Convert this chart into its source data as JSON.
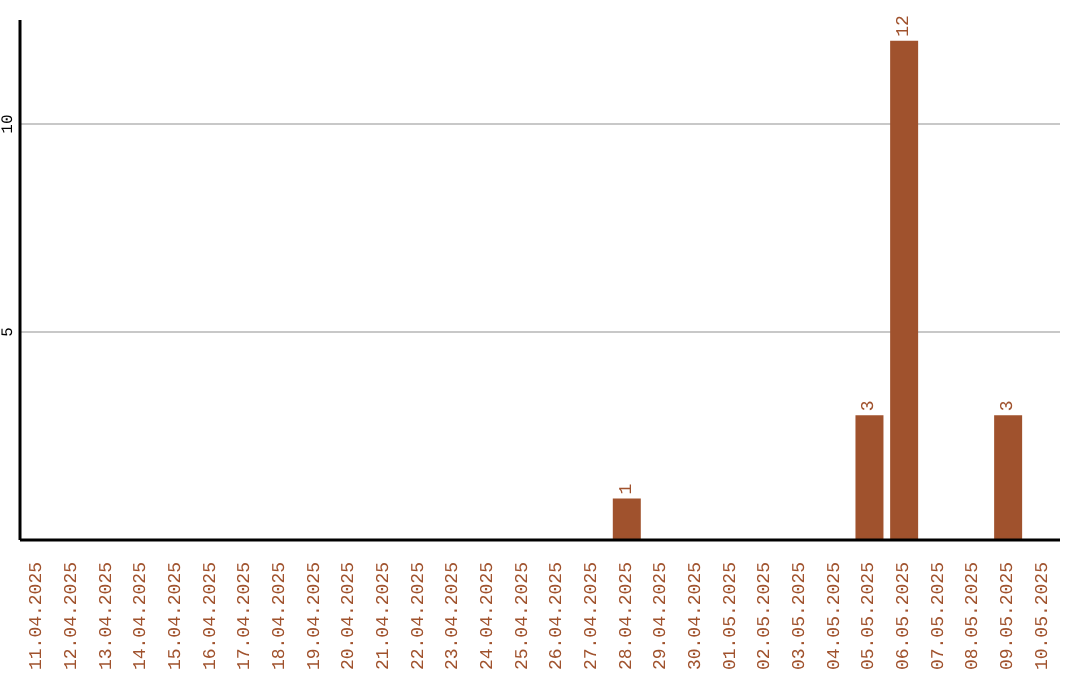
{
  "chart_data": {
    "type": "bar",
    "categories": [
      "11.04.2025",
      "12.04.2025",
      "13.04.2025",
      "14.04.2025",
      "15.04.2025",
      "16.04.2025",
      "17.04.2025",
      "18.04.2025",
      "19.04.2025",
      "20.04.2025",
      "21.04.2025",
      "22.04.2025",
      "23.04.2025",
      "24.04.2025",
      "25.04.2025",
      "26.04.2025",
      "27.04.2025",
      "28.04.2025",
      "29.04.2025",
      "30.04.2025",
      "01.05.2025",
      "02.05.2025",
      "03.05.2025",
      "04.05.2025",
      "05.05.2025",
      "06.05.2025",
      "07.05.2025",
      "08.05.2025",
      "09.05.2025",
      "10.05.2025"
    ],
    "values": [
      0,
      0,
      0,
      0,
      0,
      0,
      0,
      0,
      0,
      0,
      0,
      0,
      0,
      0,
      0,
      0,
      0,
      1,
      0,
      0,
      0,
      0,
      0,
      0,
      3,
      12,
      0,
      0,
      3,
      0
    ],
    "value_labels": [
      null,
      null,
      null,
      null,
      null,
      null,
      null,
      null,
      null,
      null,
      null,
      null,
      null,
      null,
      null,
      null,
      null,
      "1",
      null,
      null,
      null,
      null,
      null,
      null,
      "3",
      "12",
      null,
      null,
      "3",
      null
    ],
    "color": "#a0522d",
    "ylim": [
      0,
      12.5
    ],
    "yticks": [
      5,
      10
    ],
    "grid": "y"
  }
}
